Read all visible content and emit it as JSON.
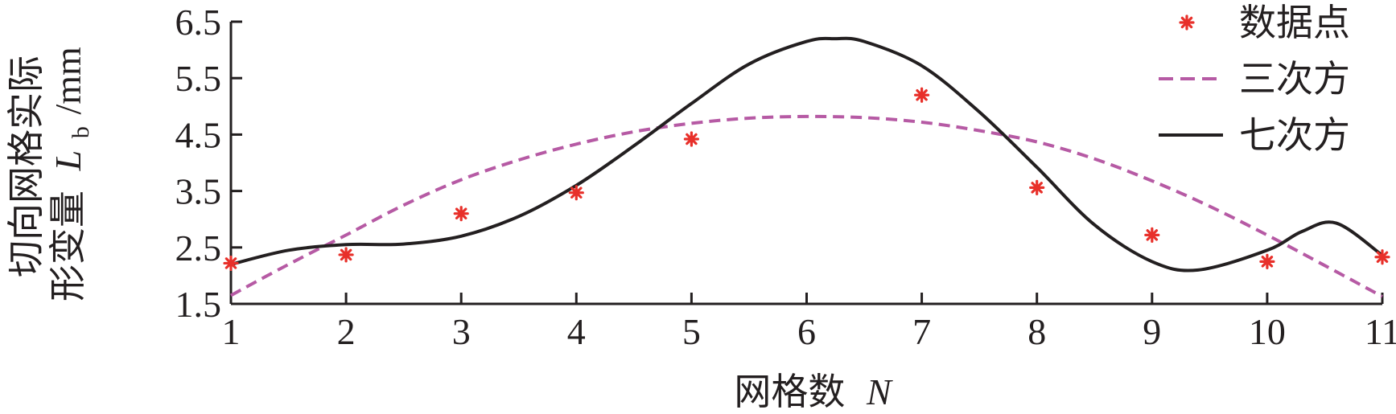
{
  "chart_data": {
    "type": "line",
    "xlabel": "网格数",
    "xlabel_var": "N",
    "ylabel_line1": "切向网格实际",
    "ylabel_line2": "形变量",
    "ylabel_var": "L",
    "ylabel_sub": "b",
    "ylabel_unit": "/mm",
    "xlim": [
      1,
      11
    ],
    "ylim": [
      1.5,
      6.5
    ],
    "x_ticks": [
      "1",
      "2",
      "3",
      "4",
      "5",
      "6",
      "7",
      "8",
      "9",
      "10",
      "11"
    ],
    "y_ticks": [
      "1.5",
      "2.5",
      "3.5",
      "4.5",
      "5.5",
      "6.5"
    ],
    "legend_position": "top-right",
    "colors": {
      "points": "#e8302a",
      "cubic": "#b65aa4",
      "septic": "#231f20",
      "axis": "#231f20"
    },
    "series": [
      {
        "name": "数据点",
        "kind": "points",
        "x": [
          1,
          2,
          3,
          4,
          5,
          6,
          7,
          8,
          9,
          10,
          11
        ],
        "y": [
          2.22,
          2.37,
          3.1,
          3.47,
          4.42,
          null,
          5.2,
          3.56,
          2.72,
          2.25,
          2.33
        ]
      },
      {
        "name": "三次方",
        "kind": "dashed",
        "x": [
          1,
          1.5,
          2,
          2.5,
          3,
          3.5,
          4,
          4.5,
          5,
          5.5,
          6,
          6.5,
          7,
          7.5,
          8,
          8.5,
          9,
          9.5,
          10,
          10.5,
          11
        ],
        "y": [
          1.65,
          2.2,
          2.72,
          3.25,
          3.7,
          4.05,
          4.33,
          4.55,
          4.7,
          4.79,
          4.82,
          4.8,
          4.72,
          4.57,
          4.37,
          4.07,
          3.68,
          3.23,
          2.72,
          2.18,
          1.63
        ]
      },
      {
        "name": "七次方",
        "kind": "solid",
        "x": [
          1,
          1.5,
          2,
          2.5,
          3,
          3.5,
          4,
          4.5,
          5,
          5.5,
          6,
          6.25,
          6.5,
          7,
          7.5,
          8,
          8.5,
          9,
          9.4,
          10,
          10.3,
          10.6,
          11
        ],
        "y": [
          2.2,
          2.45,
          2.55,
          2.56,
          2.7,
          3.05,
          3.6,
          4.3,
          5.05,
          5.75,
          6.15,
          6.2,
          6.15,
          5.72,
          4.9,
          3.92,
          2.9,
          2.25,
          2.1,
          2.45,
          2.78,
          2.93,
          2.36
        ]
      }
    ]
  }
}
